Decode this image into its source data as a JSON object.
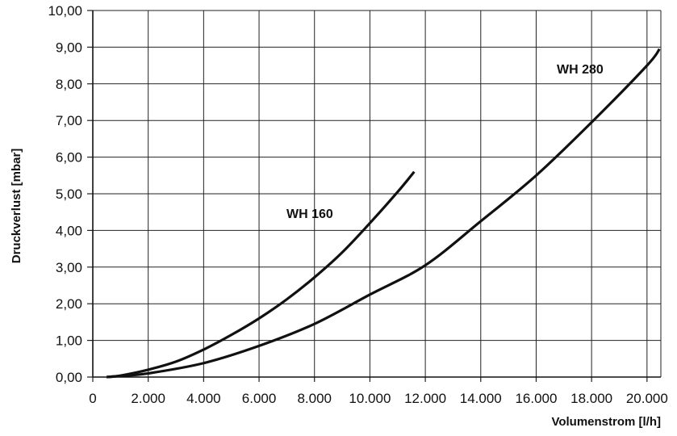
{
  "chart_data": {
    "type": "line",
    "title": "",
    "xlabel": "Volumenstrom [l/h]",
    "ylabel": "Druckverlust [mbar]",
    "xlim": [
      0,
      20500
    ],
    "ylim": [
      0,
      10
    ],
    "xticks": [
      0,
      2000,
      4000,
      6000,
      8000,
      10000,
      12000,
      14000,
      16000,
      18000,
      20000
    ],
    "xtick_labels": [
      "0",
      "2.000",
      "4.000",
      "6.000",
      "8.000",
      "10.000",
      "12.000",
      "14.000",
      "16.000",
      "18.000",
      "20.000"
    ],
    "yticks": [
      0,
      1,
      2,
      3,
      4,
      5,
      6,
      7,
      8,
      9,
      10
    ],
    "ytick_labels": [
      "0,00",
      "1,00",
      "2,00",
      "3,00",
      "4,00",
      "5,00",
      "6,00",
      "7,00",
      "8,00",
      "9,00",
      "10,00"
    ],
    "grid": true,
    "series": [
      {
        "name": "WH 160",
        "color": "#111111",
        "points": [
          [
            500,
            0.0
          ],
          [
            1000,
            0.04
          ],
          [
            2000,
            0.2
          ],
          [
            3000,
            0.42
          ],
          [
            4000,
            0.75
          ],
          [
            5000,
            1.15
          ],
          [
            6000,
            1.6
          ],
          [
            7000,
            2.12
          ],
          [
            8000,
            2.72
          ],
          [
            9000,
            3.4
          ],
          [
            10000,
            4.2
          ],
          [
            11000,
            5.05
          ],
          [
            11600,
            5.6
          ]
        ]
      },
      {
        "name": "WH 280",
        "color": "#111111",
        "points": [
          [
            500,
            0.0
          ],
          [
            1000,
            0.03
          ],
          [
            2000,
            0.1
          ],
          [
            4000,
            0.38
          ],
          [
            6000,
            0.85
          ],
          [
            8000,
            1.45
          ],
          [
            10000,
            2.25
          ],
          [
            12000,
            3.05
          ],
          [
            14000,
            4.25
          ],
          [
            16000,
            5.5
          ],
          [
            18000,
            6.95
          ],
          [
            20000,
            8.5
          ],
          [
            20450,
            8.95
          ]
        ]
      }
    ]
  }
}
